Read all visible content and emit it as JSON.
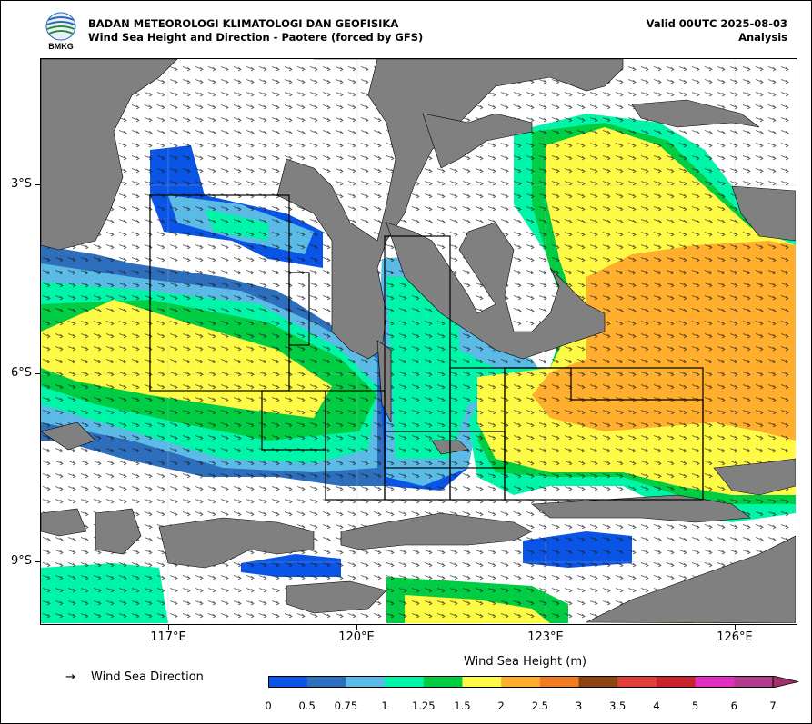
{
  "header": {
    "agency": "BADAN METEOROLOGI KLIMATOLOGI DAN GEOFISIKA",
    "subtitle": "Wind Sea Height and Direction - Paotere (forced by GFS)",
    "valid": "Valid 00UTC 2025-08-03",
    "mode": "Analysis"
  },
  "logo": {
    "text": "BMKG",
    "colors": {
      "blue": "#2a6ab8",
      "green": "#2e8b3e"
    }
  },
  "map": {
    "lat_ticks": [
      "3°S",
      "6°S",
      "9°S"
    ],
    "lon_ticks": [
      "117°E",
      "120°E",
      "123°E",
      "126°E"
    ],
    "lon_range": [
      115,
      127
    ],
    "lat_range": [
      -10,
      -1
    ],
    "land_color": "#808080",
    "calm_color": "#ffffff"
  },
  "legend": {
    "arrow": "→",
    "direction_label": "Wind Sea Direction"
  },
  "colorbar": {
    "title": "Wind Sea Height (m)",
    "levels": [
      "0",
      "0.5",
      "0.75",
      "1",
      "1.25",
      "1.5",
      "2",
      "2.5",
      "3",
      "3.5",
      "4",
      "5",
      "6",
      "7"
    ],
    "colors": [
      "#0a55e6",
      "#2e6fbd",
      "#5cbbe6",
      "#00f5a8",
      "#00cc44",
      "#fffa46",
      "#ffae2e",
      "#f07d23",
      "#8b4513",
      "#e0403c",
      "#c8232d",
      "#e030c0",
      "#b03a8c",
      "#a0306a"
    ]
  }
}
